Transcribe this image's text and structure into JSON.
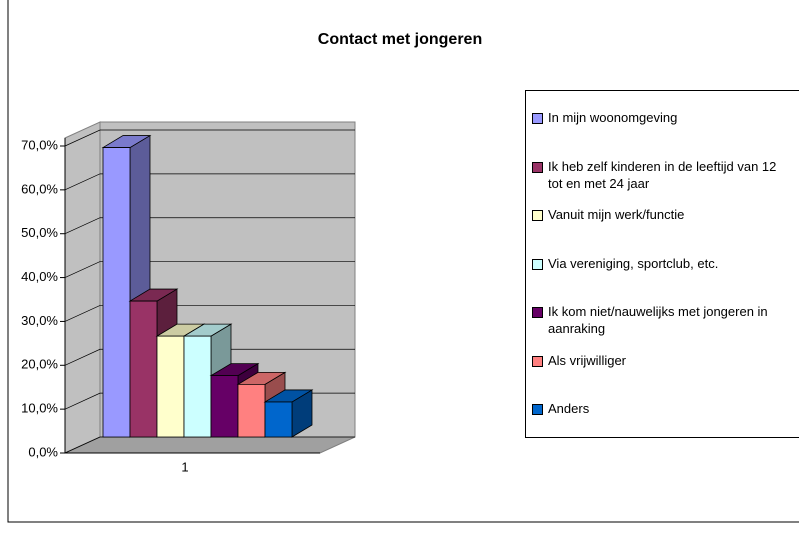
{
  "chart_data": {
    "type": "bar",
    "title": "Contact met jongeren",
    "categories": [
      "1"
    ],
    "series": [
      {
        "name": "In mijn woonomgeving",
        "color": "#9999ff",
        "values": [
          66
        ]
      },
      {
        "name": "Ik heb zelf kinderen in de leeftijd van 12 tot en met 24 jaar",
        "color": "#993366",
        "values": [
          31
        ]
      },
      {
        "name": "Vanuit mijn werk/functie",
        "color": "#ffffcc",
        "values": [
          23
        ]
      },
      {
        "name": "Via vereniging, sportclub, etc.",
        "color": "#ccffff",
        "values": [
          23
        ]
      },
      {
        "name": "Ik kom niet/nauwelijks met jongeren in aanraking",
        "color": "#660066",
        "values": [
          14
        ]
      },
      {
        "name": "Als vrijwilliger",
        "color": "#ff8080",
        "values": [
          12
        ]
      },
      {
        "name": "Anders",
        "color": "#0066cc",
        "values": [
          8
        ]
      }
    ],
    "ylim": [
      0,
      70
    ],
    "yticks": [
      {
        "value": 0,
        "label": "0,0%"
      },
      {
        "value": 10,
        "label": "10,0%"
      },
      {
        "value": 20,
        "label": "20,0%"
      },
      {
        "value": 30,
        "label": "30,0%"
      },
      {
        "value": 40,
        "label": "40,0%"
      },
      {
        "value": 50,
        "label": "50,0%"
      },
      {
        "value": 60,
        "label": "60,0%"
      },
      {
        "value": 70,
        "label": "70,0%"
      }
    ],
    "grid": true,
    "legend": "right"
  }
}
